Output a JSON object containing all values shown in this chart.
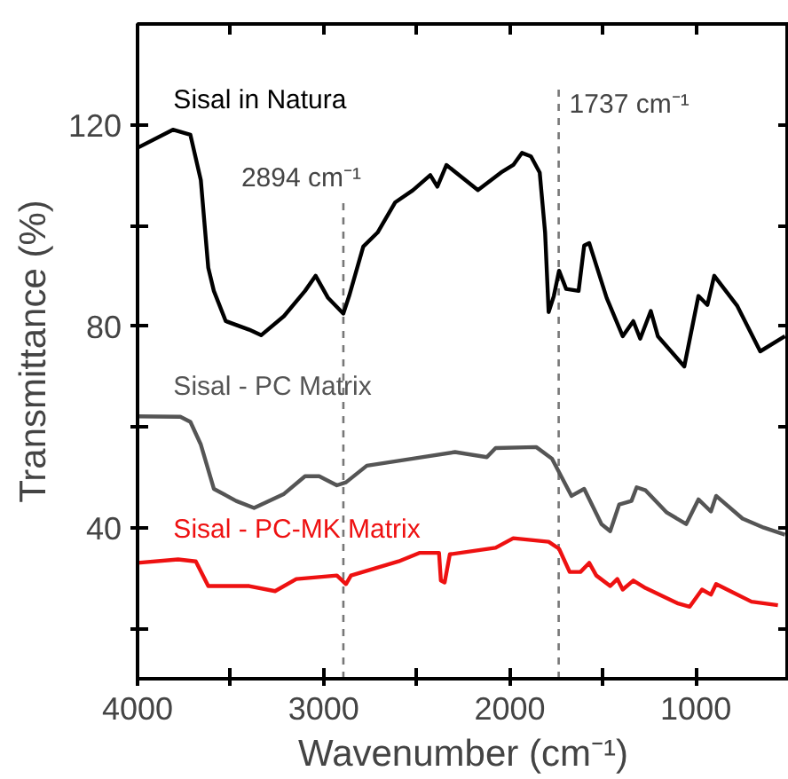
{
  "chart_data": {
    "type": "line",
    "xlabel": "Wavenumber (cm⁻¹)",
    "ylabel": "Transmittance (%)",
    "xlim": [
      4000,
      500
    ],
    "ylim": [
      10,
      140
    ],
    "xticks": [
      4000,
      {
        "value": 3500,
        "label": null
      },
      3000,
      {
        "value": 2500,
        "label": null
      },
      2000,
      {
        "value": 1500,
        "label": null
      },
      1000
    ],
    "yticks": [
      {
        "value": 20,
        "label": null
      },
      40,
      {
        "value": 60,
        "label": null
      },
      80,
      {
        "value": 100,
        "label": null
      },
      120
    ],
    "grid": false,
    "line_style": "solid",
    "marker": "none",
    "ref_lines": [
      {
        "axis": "x",
        "value": 2894,
        "label": "2894 cm⁻¹",
        "color": "#777777",
        "line_style": "dashed"
      },
      {
        "axis": "x",
        "value": 1737,
        "label": "1737 cm⁻¹",
        "color": "#777777",
        "line_style": "dashed"
      }
    ],
    "series": [
      {
        "name": "Sisal in Natura",
        "color": "#000000",
        "x": [
          4000,
          3810,
          3716,
          3660,
          3620,
          3590,
          3526,
          3400,
          3336,
          3213,
          3100,
          3043,
          2976,
          2894,
          2863,
          2787,
          2710,
          2615,
          2520,
          2427,
          2389,
          2340,
          2171,
          2047,
          1981,
          1934,
          1886,
          1839,
          1810,
          1791,
          1763,
          1735,
          1697,
          1630,
          1600,
          1573,
          1479,
          1393,
          1336,
          1299,
          1242,
          1204,
          1062,
          986,
          938,
          901,
          777,
          654,
          521
        ],
        "values": [
          115.4,
          119,
          118,
          109,
          91.6,
          87,
          81,
          79.3,
          78.2,
          82,
          87,
          90,
          85.6,
          82.5,
          86,
          95.8,
          98.6,
          104.6,
          107,
          110,
          107.7,
          112,
          107,
          110.5,
          112,
          114.4,
          113.7,
          110.5,
          98.6,
          82.8,
          86,
          91,
          87.4,
          87,
          96,
          96.5,
          85.6,
          78,
          81,
          77.5,
          83,
          78,
          72,
          86,
          84.2,
          90,
          84,
          75,
          78
        ]
      },
      {
        "name": "Sisal - PC Matrix",
        "color": "#555555",
        "x": [
          4000,
          3770,
          3716,
          3660,
          3590,
          3470,
          3374,
          3213,
          3100,
          3024,
          2929,
          2880,
          2768,
          2520,
          2294,
          2123,
          2076,
          1858,
          1773,
          1668,
          1600,
          1507,
          1460,
          1412,
          1346,
          1318,
          1270,
          1156,
          1052,
          986,
          919,
          891,
          749,
          635,
          521
        ],
        "values": [
          62.1,
          62,
          61,
          56.5,
          47.7,
          45.3,
          43.9,
          46.7,
          50.2,
          50.2,
          48.4,
          49,
          52.3,
          53.7,
          55,
          54,
          55.8,
          56,
          53.7,
          46.3,
          47.7,
          40.7,
          39.3,
          44.6,
          45.3,
          48,
          47.4,
          43,
          40.7,
          45.6,
          43.2,
          46.3,
          41.8,
          40,
          38.6
        ]
      },
      {
        "name": "Sisal - PC-MK Matrix",
        "color": "#ee1111",
        "x": [
          4000,
          3782,
          3687,
          3620,
          3400,
          3261,
          3147,
          2929,
          2880,
          2853,
          2597,
          2483,
          2380,
          2370,
          2350,
          2322,
          2076,
          1981,
          1791,
          1735,
          1678,
          1620,
          1573,
          1535,
          1460,
          1422,
          1393,
          1336,
          1270,
          1100,
          1033,
          967,
          919,
          891,
          815,
          701,
          559
        ],
        "values": [
          33,
          33.7,
          33.3,
          28.4,
          28.4,
          27.4,
          29.8,
          30.5,
          28.8,
          30.5,
          33.3,
          35,
          35,
          29.5,
          29.1,
          34.7,
          36,
          37.9,
          37.2,
          35.8,
          31.2,
          31.2,
          33,
          30.5,
          28.4,
          29.8,
          27.7,
          29.5,
          28,
          25,
          24.3,
          27.7,
          26.7,
          28.8,
          27.4,
          25.3,
          24.6
        ]
      }
    ]
  }
}
